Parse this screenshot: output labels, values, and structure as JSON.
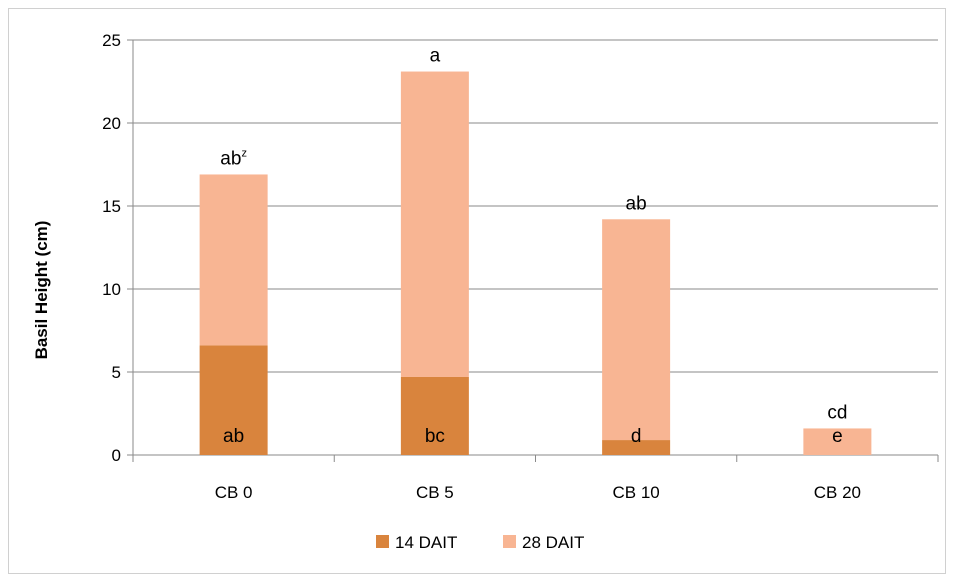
{
  "chart_data": {
    "type": "bar",
    "stacked": true,
    "categories": [
      "CB 0",
      "CB 5",
      "CB 10",
      "CB 20"
    ],
    "ylabel": "Basil Height (cm)",
    "ylim": [
      0,
      25
    ],
    "yticks": [
      "0",
      "5",
      "10",
      "15",
      "20",
      "25"
    ],
    "grid": true,
    "legend_position": "bottom",
    "series": [
      {
        "name": "14 DAIT",
        "color": "#d9843d",
        "values": [
          6.6,
          4.7,
          0.9,
          0
        ],
        "labels": [
          "ab",
          "bc",
          "d",
          "e"
        ]
      },
      {
        "name": "28 DAIT",
        "color": "#f8b593",
        "values": [
          10.3,
          18.4,
          13.3,
          1.6
        ],
        "labels": [
          "ab",
          "a",
          "ab",
          "cd"
        ],
        "label_superscripts": [
          "z",
          "",
          "",
          ""
        ]
      }
    ]
  }
}
